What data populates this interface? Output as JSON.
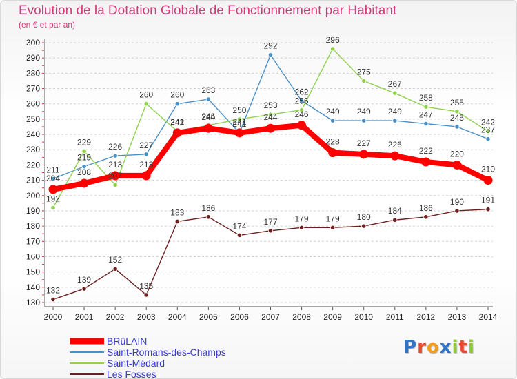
{
  "title": "Evolution de la Dotation Globale de Fonctionnement par Habitant",
  "subtitle": "(en € et par an)",
  "logo": {
    "text": "Proxiti",
    "letters": [
      {
        "ch": "P",
        "color": "#2f74c9"
      },
      {
        "ch": "r",
        "color": "#e84a2f"
      },
      {
        "ch": "o",
        "color": "#f39a1a"
      },
      {
        "ch": "x",
        "color": "#2f74c9"
      },
      {
        "ch": "i",
        "color": "#8fc93a"
      },
      {
        "ch": "t",
        "color": "#e84a2f"
      },
      {
        "ch": "i",
        "color": "#8fc93a"
      }
    ]
  },
  "chart_data": {
    "type": "line",
    "title": "Evolution de la Dotation Globale de Fonctionnement par Habitant",
    "subtitle": "(en € et par an)",
    "xlabel": "",
    "ylabel": "",
    "ylim": [
      130,
      300
    ],
    "yticks": [
      130,
      140,
      150,
      160,
      170,
      180,
      190,
      200,
      210,
      220,
      230,
      240,
      250,
      260,
      270,
      280,
      290,
      300
    ],
    "grid": "horizontal dashed",
    "legend_position": "bottom-left",
    "x": [
      "2000",
      "2001",
      "2002",
      "2003",
      "2004",
      "2005",
      "2006",
      "2007",
      "2008",
      "2009",
      "2010",
      "2011",
      "2012",
      "2013",
      "2014"
    ],
    "series": [
      {
        "name": "Saint-Romans-des-Champs",
        "color": "#4a90c8",
        "marker": "#4a90c8",
        "values": [
          211,
          219,
          226,
          227,
          260,
          263,
          241,
          292,
          262,
          249,
          249,
          249,
          247,
          245,
          237
        ],
        "labels": [
          "211",
          "219",
          "226",
          "227",
          "260",
          "263",
          "241",
          "292",
          "262",
          "249",
          "249",
          "249",
          "247",
          "245",
          "237"
        ]
      },
      {
        "name": "Saint-Médard",
        "color": "#8fd14f",
        "marker": "#8fd14f",
        "values": [
          192,
          229,
          207,
          260,
          242,
          246,
          250,
          253,
          256,
          296,
          275,
          267,
          258,
          255,
          242
        ],
        "labels": [
          "192",
          "229",
          "207",
          "260",
          "242",
          "246",
          "250",
          "253",
          "256",
          "296",
          "275",
          "267",
          "258",
          "255",
          "242"
        ]
      },
      {
        "name": "Les Fosses",
        "color": "#6b2020",
        "marker": "#6b2020",
        "values": [
          132,
          139,
          152,
          135,
          183,
          186,
          174,
          177,
          179,
          179,
          180,
          184,
          186,
          190,
          191
        ],
        "labels": [
          "132",
          "139",
          "152",
          "135",
          "183",
          "186",
          "174",
          "177",
          "179",
          "179",
          "180",
          "184",
          "186",
          "190",
          "191"
        ]
      },
      {
        "name": "BRûLAIN",
        "color": "#ff0000",
        "marker": "#ff0000",
        "thick": true,
        "values": [
          204,
          208,
          213,
          213,
          241,
          244,
          241,
          244,
          246,
          228,
          227,
          226,
          222,
          220,
          210
        ],
        "labels": [
          "204",
          "208",
          "213",
          "213",
          "241",
          "244",
          "241",
          "244",
          "246",
          "228",
          "227",
          "226",
          "222",
          "220",
          "210"
        ]
      }
    ],
    "legend": [
      {
        "name": "BRûLAIN",
        "color": "#ff0000",
        "thick": true
      },
      {
        "name": "Saint-Romans-des-Champs",
        "color": "#4a90c8",
        "thick": false
      },
      {
        "name": "Saint-Médard",
        "color": "#8fd14f",
        "thick": false
      },
      {
        "name": "Les Fosses",
        "color": "#6b2020",
        "thick": false
      }
    ]
  }
}
